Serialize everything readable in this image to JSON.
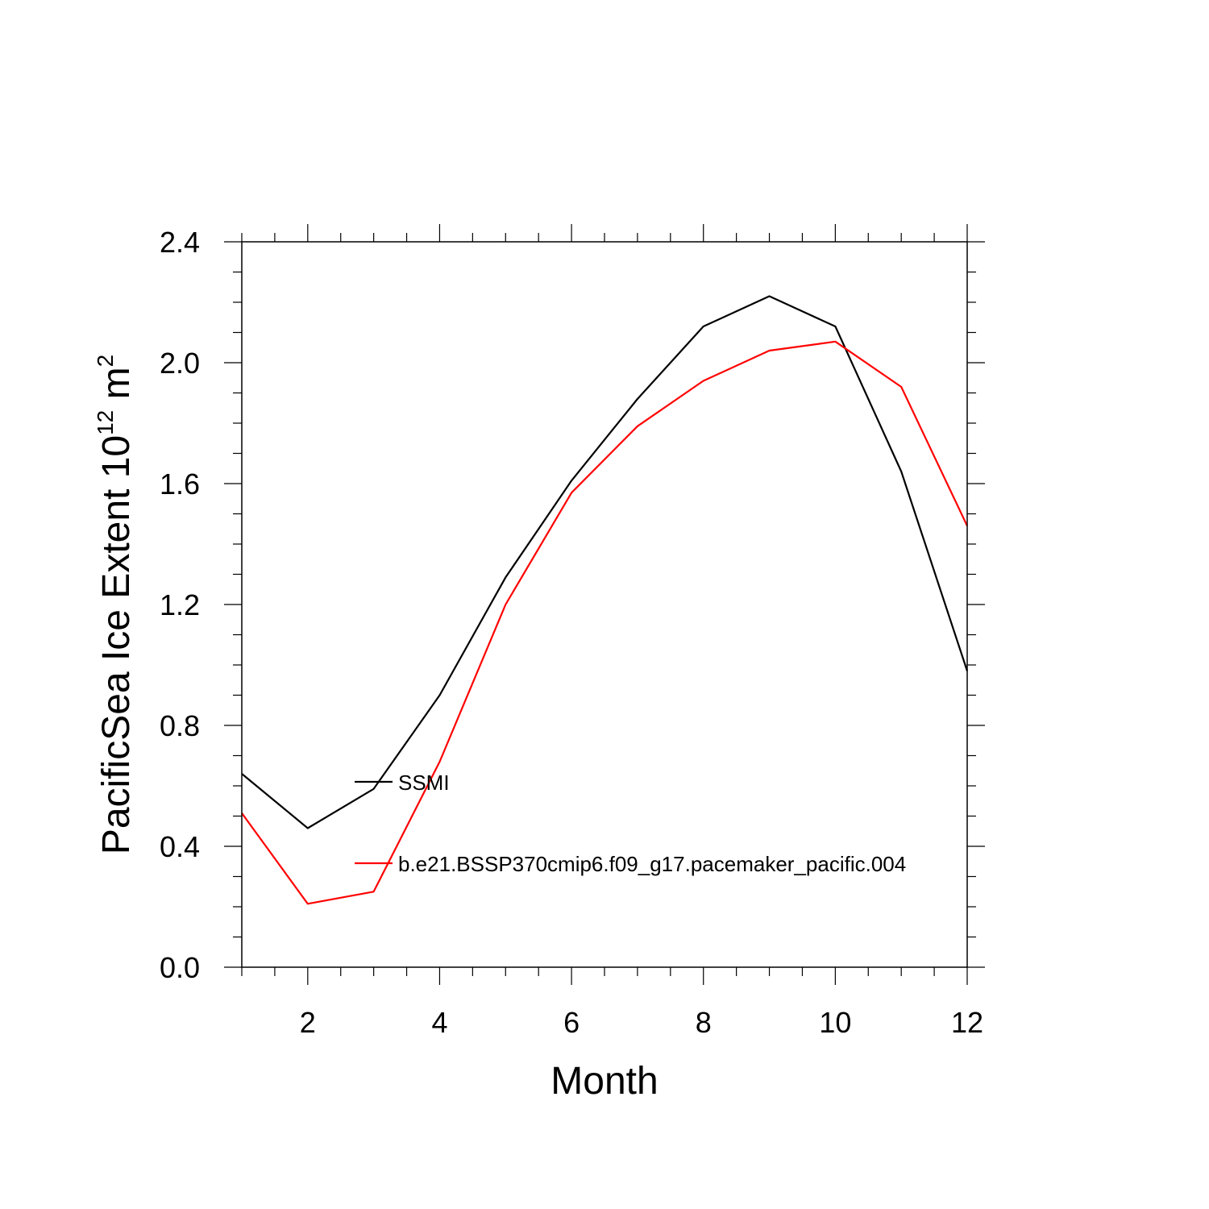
{
  "chart_data": {
    "type": "line",
    "xlabel": "Month",
    "ylabel": {
      "main": "PacificSea Ice Extent 10",
      "superscript_1": "12",
      "unit": " m",
      "superscript_2": "2"
    },
    "xlim": [
      1,
      12
    ],
    "ylim": [
      0,
      2.4
    ],
    "x_ticks": [
      2,
      4,
      6,
      8,
      10,
      12
    ],
    "x_tick_labels": [
      "2",
      "4",
      "6",
      "8",
      "10",
      "12"
    ],
    "y_ticks": [
      0.0,
      0.4,
      0.8,
      1.2,
      1.6,
      2.0,
      2.4
    ],
    "y_tick_labels": [
      "0.0",
      "0.4",
      "0.8",
      "1.2",
      "1.6",
      "2.0",
      "2.4"
    ],
    "grid": false,
    "legend_position": "inside-left",
    "x": [
      1,
      2,
      3,
      4,
      5,
      6,
      7,
      8,
      9,
      10,
      11,
      12
    ],
    "series": [
      {
        "name": "SSMI",
        "color": "#000000",
        "values": [
          0.64,
          0.46,
          0.59,
          0.9,
          1.29,
          1.61,
          1.88,
          2.12,
          2.22,
          2.12,
          1.64,
          0.98
        ]
      },
      {
        "name": "b.e21.BSSP370cmip6.f09_g17.pacemaker_pacific.004",
        "color": "#ff0000",
        "values": [
          0.51,
          0.21,
          0.25,
          0.68,
          1.2,
          1.57,
          1.79,
          1.94,
          2.04,
          2.07,
          1.92,
          1.46
        ]
      }
    ]
  }
}
